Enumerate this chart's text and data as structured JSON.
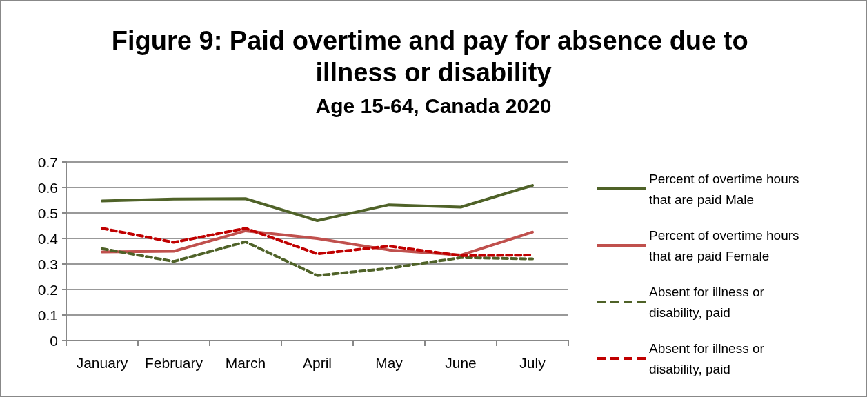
{
  "chart_data": {
    "type": "line",
    "title": "Figure 9: Paid overtime and pay for absence due to illness or disability",
    "subtitle": "Age 15-64, Canada 2020",
    "categories": [
      "January",
      "February",
      "March",
      "April",
      "May",
      "June",
      "July"
    ],
    "series": [
      {
        "name": "Percent of overtime hours that are paid Male",
        "color": "#4f6228",
        "line_style": "solid",
        "values": [
          0.547,
          0.555,
          0.556,
          0.47,
          0.532,
          0.523,
          0.608
        ]
      },
      {
        "name": "Percent of overtime hours that are paid Female",
        "color": "#c0504d",
        "line_style": "solid",
        "values": [
          0.347,
          0.35,
          0.43,
          0.4,
          0.355,
          0.335,
          0.425
        ]
      },
      {
        "name": "Absent for illness or disability, paid",
        "color": "#4f6228",
        "line_style": "dashed",
        "values": [
          0.36,
          0.31,
          0.387,
          0.255,
          0.283,
          0.325,
          0.32
        ]
      },
      {
        "name": "Absent for illness or disability, paid",
        "color": "#c00000",
        "line_style": "dashed",
        "values": [
          0.44,
          0.385,
          0.44,
          0.34,
          0.37,
          0.333,
          0.335
        ]
      }
    ],
    "ylim": [
      0,
      0.7
    ],
    "yticks": [
      0,
      0.1,
      0.2,
      0.3,
      0.4,
      0.5,
      0.6,
      0.7
    ],
    "grid": "y",
    "legend": "right",
    "marker": "none"
  }
}
